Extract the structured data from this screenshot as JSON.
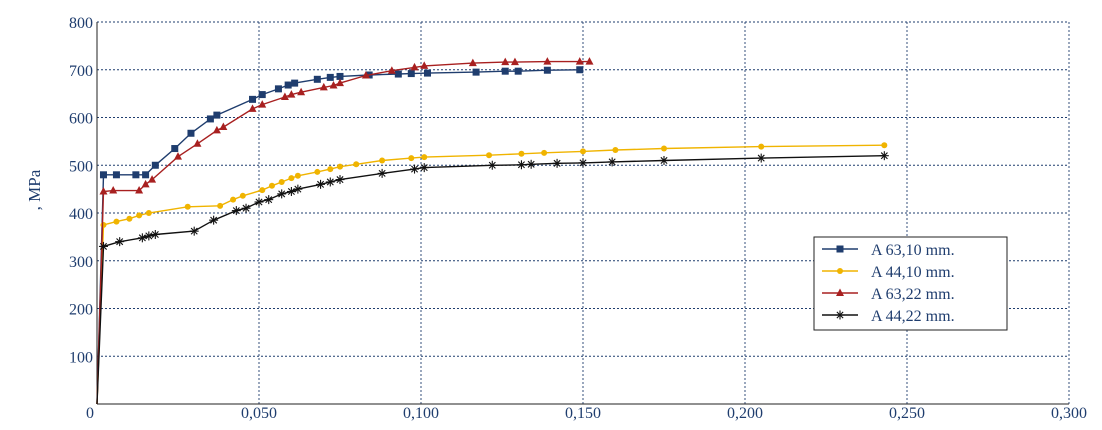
{
  "chart_data": {
    "type": "line",
    "title": "",
    "xlabel": "",
    "ylabel": ", MPa",
    "xlim": [
      0,
      0.3
    ],
    "ylim": [
      0,
      800
    ],
    "xticks": [
      0,
      0.05,
      0.1,
      0.15,
      0.2,
      0.25,
      0.3
    ],
    "xtick_labels": [
      "0",
      "0,050",
      "0,100",
      "0,150",
      "0,200",
      "0,250",
      "0,300"
    ],
    "yticks": [
      100,
      200,
      300,
      400,
      500,
      600,
      700,
      800
    ],
    "ytick_labels": [
      "100",
      "200",
      "300",
      "400",
      "500",
      "600",
      "700",
      "800"
    ],
    "grid": true,
    "legend_position": "right",
    "series": [
      {
        "name": "A 63,10 mm.",
        "color": "#1f3d6e",
        "marker": "square",
        "points": [
          [
            0,
            0
          ],
          [
            0.002,
            480
          ],
          [
            0.006,
            480
          ],
          [
            0.012,
            480
          ],
          [
            0.015,
            480
          ],
          [
            0.018,
            500
          ],
          [
            0.024,
            535
          ],
          [
            0.029,
            567
          ],
          [
            0.035,
            597
          ],
          [
            0.037,
            605
          ],
          [
            0.048,
            638
          ],
          [
            0.051,
            648
          ],
          [
            0.056,
            660
          ],
          [
            0.059,
            668
          ],
          [
            0.061,
            672
          ],
          [
            0.068,
            680
          ],
          [
            0.072,
            684
          ],
          [
            0.075,
            686
          ],
          [
            0.084,
            689
          ],
          [
            0.093,
            691
          ],
          [
            0.097,
            692
          ],
          [
            0.102,
            693
          ],
          [
            0.117,
            695
          ],
          [
            0.126,
            697
          ],
          [
            0.13,
            697
          ],
          [
            0.139,
            699
          ],
          [
            0.149,
            700
          ]
        ]
      },
      {
        "name": "A 44,10 mm.",
        "color": "#f0b400",
        "marker": "circle",
        "points": [
          [
            0,
            0
          ],
          [
            0.002,
            375
          ],
          [
            0.006,
            382
          ],
          [
            0.01,
            388
          ],
          [
            0.013,
            395
          ],
          [
            0.016,
            400
          ],
          [
            0.028,
            413
          ],
          [
            0.038,
            415
          ],
          [
            0.042,
            428
          ],
          [
            0.045,
            436
          ],
          [
            0.051,
            448
          ],
          [
            0.054,
            457
          ],
          [
            0.057,
            465
          ],
          [
            0.06,
            473
          ],
          [
            0.062,
            478
          ],
          [
            0.068,
            486
          ],
          [
            0.072,
            492
          ],
          [
            0.075,
            497
          ],
          [
            0.08,
            502
          ],
          [
            0.088,
            510
          ],
          [
            0.097,
            515
          ],
          [
            0.101,
            517
          ],
          [
            0.121,
            521
          ],
          [
            0.131,
            524
          ],
          [
            0.138,
            526
          ],
          [
            0.15,
            529
          ],
          [
            0.16,
            532
          ],
          [
            0.175,
            535
          ],
          [
            0.205,
            539
          ],
          [
            0.243,
            542
          ]
        ]
      },
      {
        "name": "A 63,22 mm.",
        "color": "#a82020",
        "marker": "triangle",
        "points": [
          [
            0,
            0
          ],
          [
            0.002,
            445
          ],
          [
            0.005,
            447
          ],
          [
            0.013,
            447
          ],
          [
            0.015,
            460
          ],
          [
            0.017,
            470
          ],
          [
            0.025,
            518
          ],
          [
            0.031,
            545
          ],
          [
            0.037,
            573
          ],
          [
            0.039,
            580
          ],
          [
            0.048,
            618
          ],
          [
            0.051,
            627
          ],
          [
            0.058,
            643
          ],
          [
            0.06,
            648
          ],
          [
            0.063,
            653
          ],
          [
            0.07,
            663
          ],
          [
            0.073,
            667
          ],
          [
            0.075,
            672
          ],
          [
            0.083,
            688
          ],
          [
            0.091,
            698
          ],
          [
            0.098,
            705
          ],
          [
            0.101,
            708
          ],
          [
            0.116,
            714
          ],
          [
            0.126,
            716
          ],
          [
            0.129,
            716
          ],
          [
            0.139,
            717
          ],
          [
            0.149,
            717
          ],
          [
            0.152,
            717
          ]
        ]
      },
      {
        "name": "A 44,22 mm.",
        "color": "#111111",
        "marker": "asterisk",
        "points": [
          [
            0,
            0
          ],
          [
            0.002,
            330
          ],
          [
            0.007,
            340
          ],
          [
            0.014,
            348
          ],
          [
            0.016,
            352
          ],
          [
            0.018,
            355
          ],
          [
            0.03,
            362
          ],
          [
            0.036,
            385
          ],
          [
            0.043,
            405
          ],
          [
            0.046,
            410
          ],
          [
            0.05,
            423
          ],
          [
            0.053,
            428
          ],
          [
            0.057,
            440
          ],
          [
            0.06,
            445
          ],
          [
            0.062,
            450
          ],
          [
            0.069,
            460
          ],
          [
            0.072,
            465
          ],
          [
            0.075,
            470
          ],
          [
            0.088,
            483
          ],
          [
            0.098,
            492
          ],
          [
            0.101,
            495
          ],
          [
            0.122,
            500
          ],
          [
            0.131,
            501
          ],
          [
            0.134,
            502
          ],
          [
            0.142,
            504
          ],
          [
            0.15,
            505
          ],
          [
            0.159,
            507
          ],
          [
            0.175,
            510
          ],
          [
            0.205,
            515
          ],
          [
            0.243,
            520
          ]
        ]
      }
    ]
  }
}
